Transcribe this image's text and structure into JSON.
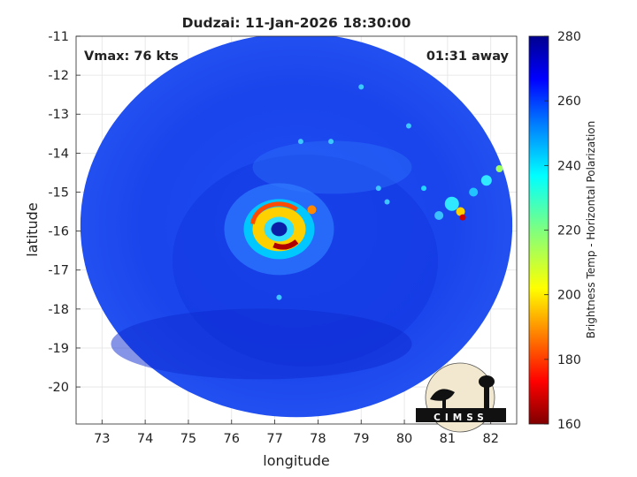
{
  "chart_data": {
    "type": "heatmap",
    "title": "Dudzai: 11-Jan-2026 18:30:00",
    "xlabel": "longitude",
    "ylabel": "latitude",
    "xlim": [
      72.4,
      82.6
    ],
    "ylim": [
      -20.95,
      -11
    ],
    "x_ticks": [
      73,
      74,
      75,
      76,
      77,
      78,
      79,
      80,
      81,
      82
    ],
    "y_ticks": [
      -11,
      -12,
      -13,
      -14,
      -15,
      -16,
      -17,
      -18,
      -19,
      -20
    ],
    "grid": true,
    "annotations": {
      "vmax": "Vmax: 76 kts",
      "time_away": "01:31 away"
    },
    "colorbar": {
      "label": "Brightness Temp - Horizontal Polarization",
      "range": [
        160,
        280
      ],
      "ticks": [
        280,
        260,
        240,
        220,
        200,
        180,
        160
      ],
      "colormap": "jet"
    },
    "storm_center": {
      "lon": 77.1,
      "lat": -15.95
    },
    "swath": {
      "center_lon": 77.5,
      "center_lat": -15.85,
      "radius_deg": 5.0
    },
    "logo_text": "CIMSS"
  }
}
